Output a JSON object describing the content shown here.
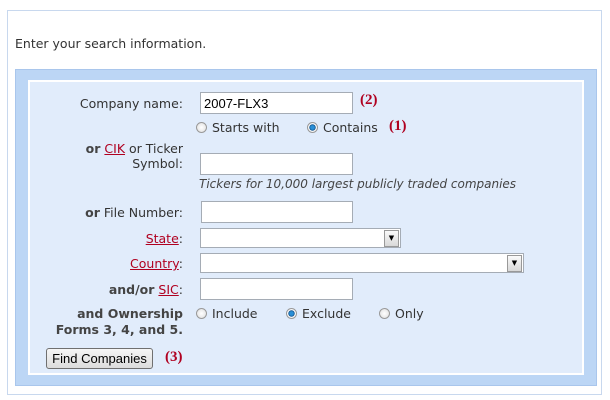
{
  "intro": "Enter your search information.",
  "company": {
    "label": "Company name:",
    "value": "2007-FLX3",
    "marker": "(2)",
    "match_options": [
      {
        "label": "Starts with",
        "selected": false
      },
      {
        "label": "Contains",
        "selected": true
      }
    ],
    "match_marker": "(1)"
  },
  "cik": {
    "or": "or",
    "link": "CIK",
    "text": "or Ticker",
    "line2": "Symbol:",
    "value": "",
    "hint": "Tickers for 10,000 largest publicly traded companies"
  },
  "file": {
    "or": "or",
    "label": "File Number:",
    "value": ""
  },
  "state": {
    "link": "State",
    "colon": ":",
    "value": ""
  },
  "country": {
    "link": "Country",
    "colon": ":",
    "value": ""
  },
  "sic": {
    "prefix": "and/or",
    "link": "SIC",
    "colon": ":",
    "value": ""
  },
  "ownership": {
    "line1": "and Ownership",
    "line2": "Forms 3, 4, and 5.",
    "options": [
      {
        "label": "Include",
        "selected": false
      },
      {
        "label": "Exclude",
        "selected": true
      },
      {
        "label": "Only",
        "selected": false
      }
    ]
  },
  "button": {
    "label": "Find Companies",
    "marker": "(3)"
  },
  "colors": {
    "link": "#b00020",
    "frame": "#bcd6f5",
    "panel": "#e1ecfb"
  }
}
